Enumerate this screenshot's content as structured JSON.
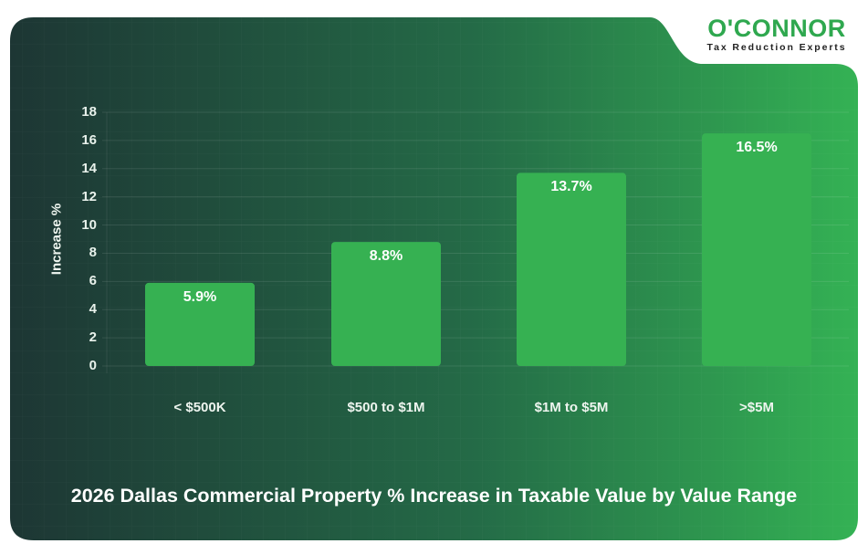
{
  "brand": {
    "name": "O'CONNOR",
    "tagline": "Tax Reduction Experts",
    "colors": {
      "logo_green": "#2fa84f",
      "tagline": "#222222",
      "bar": "#36b152",
      "gradient_start": "#1d3634",
      "gradient_end": "#34b254"
    }
  },
  "chart_data": {
    "type": "bar",
    "title": "2026 Dallas Commercial Property % Increase in Taxable Value by Value Range",
    "xlabel": "",
    "ylabel": "Increase %",
    "categories": [
      "< $500K",
      "$500 to $1M",
      "$1M to $5M",
      ">$5M"
    ],
    "values": [
      5.9,
      8.8,
      13.7,
      16.5
    ],
    "data_labels": [
      "5.9%",
      "8.8%",
      "13.7%",
      "16.5%"
    ],
    "ylim": [
      0,
      18
    ],
    "yticks": [
      0,
      2,
      4,
      6,
      8,
      10,
      12,
      14,
      16,
      18
    ],
    "grid": true,
    "legend": "none"
  }
}
